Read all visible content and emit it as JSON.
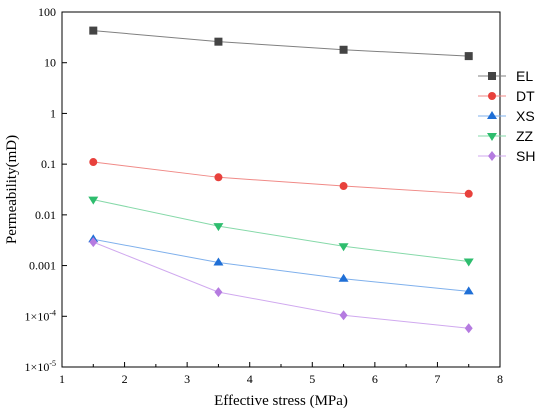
{
  "chart_data": {
    "type": "line",
    "title": "",
    "xlabel": "Effective stress (MPa)",
    "ylabel": "Permeability(mD)",
    "xlim": [
      1,
      8
    ],
    "ylim": [
      1e-05,
      100
    ],
    "yscale": "log",
    "x_ticks": [
      1,
      2,
      3,
      4,
      5,
      6,
      7,
      8
    ],
    "y_ticks": [
      {
        "value": 100,
        "label": "100"
      },
      {
        "value": 10,
        "label": "10"
      },
      {
        "value": 1,
        "label": "1"
      },
      {
        "value": 0.1,
        "label": "0.1"
      },
      {
        "value": 0.01,
        "label": "0.01"
      },
      {
        "value": 0.001,
        "label": "0.001"
      },
      {
        "value": 0.0001,
        "label": "1×10",
        "exp": "-4"
      },
      {
        "value": 1e-05,
        "label": "1×10",
        "exp": "-5"
      }
    ],
    "grid": false,
    "legend_position": "right",
    "x": [
      1.5,
      3.5,
      5.5,
      7.5
    ],
    "series": [
      {
        "name": "EL",
        "values": [
          43,
          26,
          18,
          13.5
        ],
        "color": "#444444",
        "line_color": "#808080",
        "marker": "square"
      },
      {
        "name": "DT",
        "values": [
          0.11,
          0.055,
          0.037,
          0.026
        ],
        "color": "#e8413c",
        "line_color": "#f08a87",
        "marker": "circle"
      },
      {
        "name": "XS",
        "values": [
          0.0033,
          0.00115,
          0.00055,
          0.00031
        ],
        "color": "#1f6fd6",
        "line_color": "#7fb0ec",
        "marker": "triangle-up"
      },
      {
        "name": "ZZ",
        "values": [
          0.02,
          0.006,
          0.0024,
          0.0012
        ],
        "color": "#2ebd6e",
        "line_color": "#86d9a9",
        "marker": "triangle-down"
      },
      {
        "name": "SH",
        "values": [
          0.0029,
          0.0003,
          0.000105,
          5.8e-05
        ],
        "color": "#b57be0",
        "line_color": "#d0a9ef",
        "marker": "diamond"
      }
    ]
  }
}
